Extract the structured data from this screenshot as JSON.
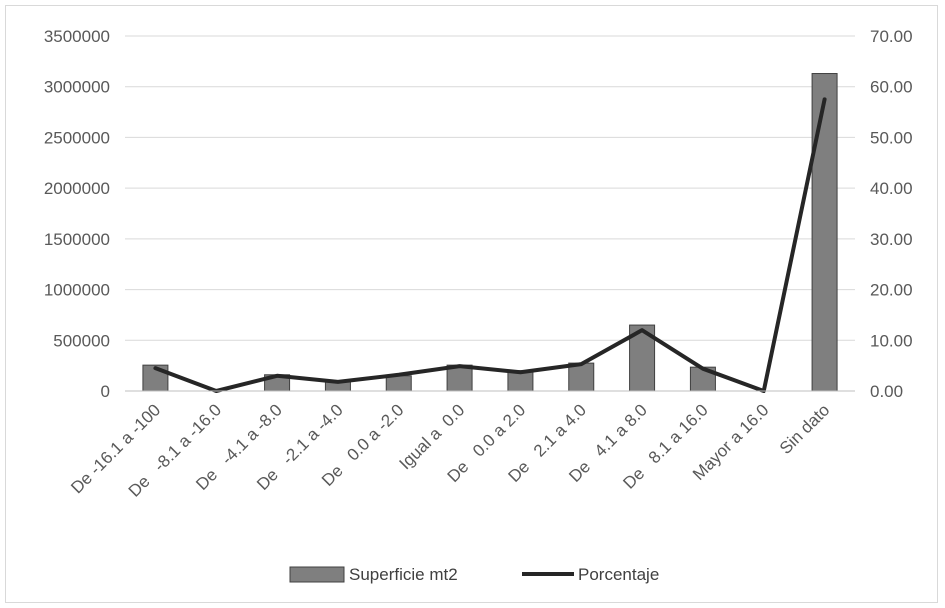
{
  "chart_data": {
    "type": "bar",
    "categories": [
      "De -16.1 a -100",
      "De   -8.1 a -16.0",
      "De   -4.1 a -8.0",
      "De   -2.1 a -4.0",
      "De   0.0 a -2.0",
      "Igual a  0.0",
      "De   0.0 a 2.0",
      "De   2.1 a 4.0",
      "De   4.1 a 8.0",
      "De   8.1 a 16.0",
      "Mayor a 16.0",
      "Sin dato"
    ],
    "series": [
      {
        "name": "Superficie mt2",
        "type": "bar",
        "axis": "left",
        "color": "#7f7f7f",
        "values": [
          255000,
          0,
          160000,
          95000,
          150000,
          255000,
          200000,
          275000,
          650000,
          235000,
          0,
          3130000
        ]
      },
      {
        "name": "Porcentaje",
        "type": "line",
        "axis": "right",
        "color": "#262626",
        "values": [
          4.5,
          0.0,
          3.0,
          1.8,
          3.2,
          4.9,
          3.7,
          5.3,
          12.0,
          4.4,
          0.0,
          57.5
        ]
      }
    ],
    "y_left": {
      "min": 0,
      "max": 3500000,
      "ticks": [
        "0",
        "500000",
        "1000000",
        "1500000",
        "2000000",
        "2500000",
        "3000000",
        "3500000"
      ]
    },
    "y_right": {
      "min": 0,
      "max": 70,
      "ticks": [
        "0.00",
        "10.00",
        "20.00",
        "30.00",
        "40.00",
        "50.00",
        "60.00",
        "70.00"
      ]
    },
    "grid": true,
    "legend": "bottom"
  }
}
